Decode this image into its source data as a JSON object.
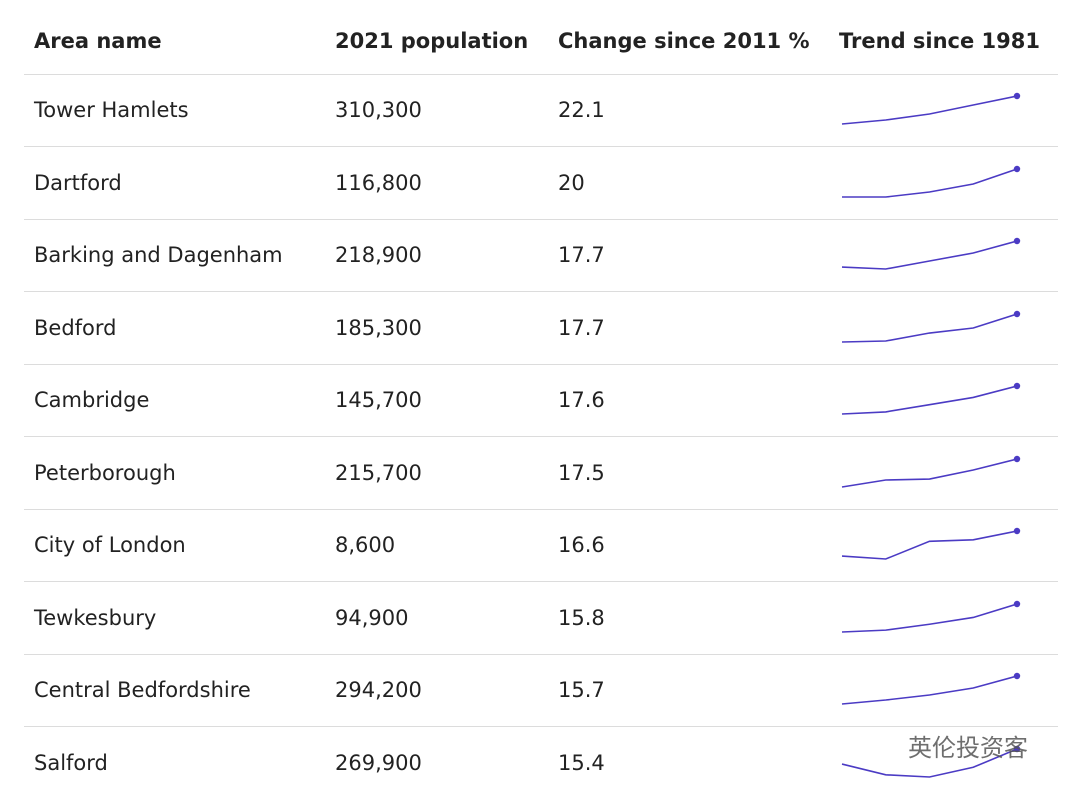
{
  "table": {
    "columns": [
      "Area name",
      "2021 population",
      "Change since 2011 %",
      "Trend since 1981"
    ],
    "rows": [
      {
        "area": "Tower Hamlets",
        "population": "310,300",
        "change": 22.1,
        "trend": [
          135500,
          160500,
          197900,
          254100,
          310300
        ]
      },
      {
        "area": "Dartford",
        "population": "116,800",
        "change": 20,
        "trend": [
          80400,
          80400,
          86900,
          97300,
          116800
        ]
      },
      {
        "area": "Barking and Dagenham",
        "population": "218,900",
        "change": 17.7,
        "trend": [
          147600,
          142200,
          164100,
          186000,
          218900
        ]
      },
      {
        "area": "Bedford",
        "population": "185,300",
        "change": 17.7,
        "trend": [
          129500,
          131500,
          147400,
          157400,
          185300
        ]
      },
      {
        "area": "Cambridge",
        "population": "145,700",
        "change": 17.6,
        "trend": [
          92200,
          96200,
          110000,
          123900,
          145700
        ]
      },
      {
        "area": "Peterborough",
        "population": "215,700",
        "change": 17.5,
        "trend": [
          134000,
          154400,
          157300,
          183600,
          215700
        ]
      },
      {
        "area": "City of London",
        "population": "8,600",
        "change": 16.6,
        "trend": [
          5200,
          4800,
          7200,
          7400,
          8600
        ]
      },
      {
        "area": "Tewkesbury",
        "population": "94,900",
        "change": 15.8,
        "trend": [
          68100,
          69900,
          75500,
          82000,
          94900
        ]
      },
      {
        "area": "Central Bedfordshire",
        "population": "294,200",
        "change": 15.7,
        "trend": [
          201000,
          214300,
          231000,
          254300,
          294200
        ]
      },
      {
        "area": "Salford",
        "population": "269,900",
        "change": 15.4,
        "trend": [
          240300,
          219100,
          214800,
          233900,
          269900
        ]
      }
    ],
    "trend_color": "#4b3bc4"
  },
  "watermark": "英伦投资客"
}
